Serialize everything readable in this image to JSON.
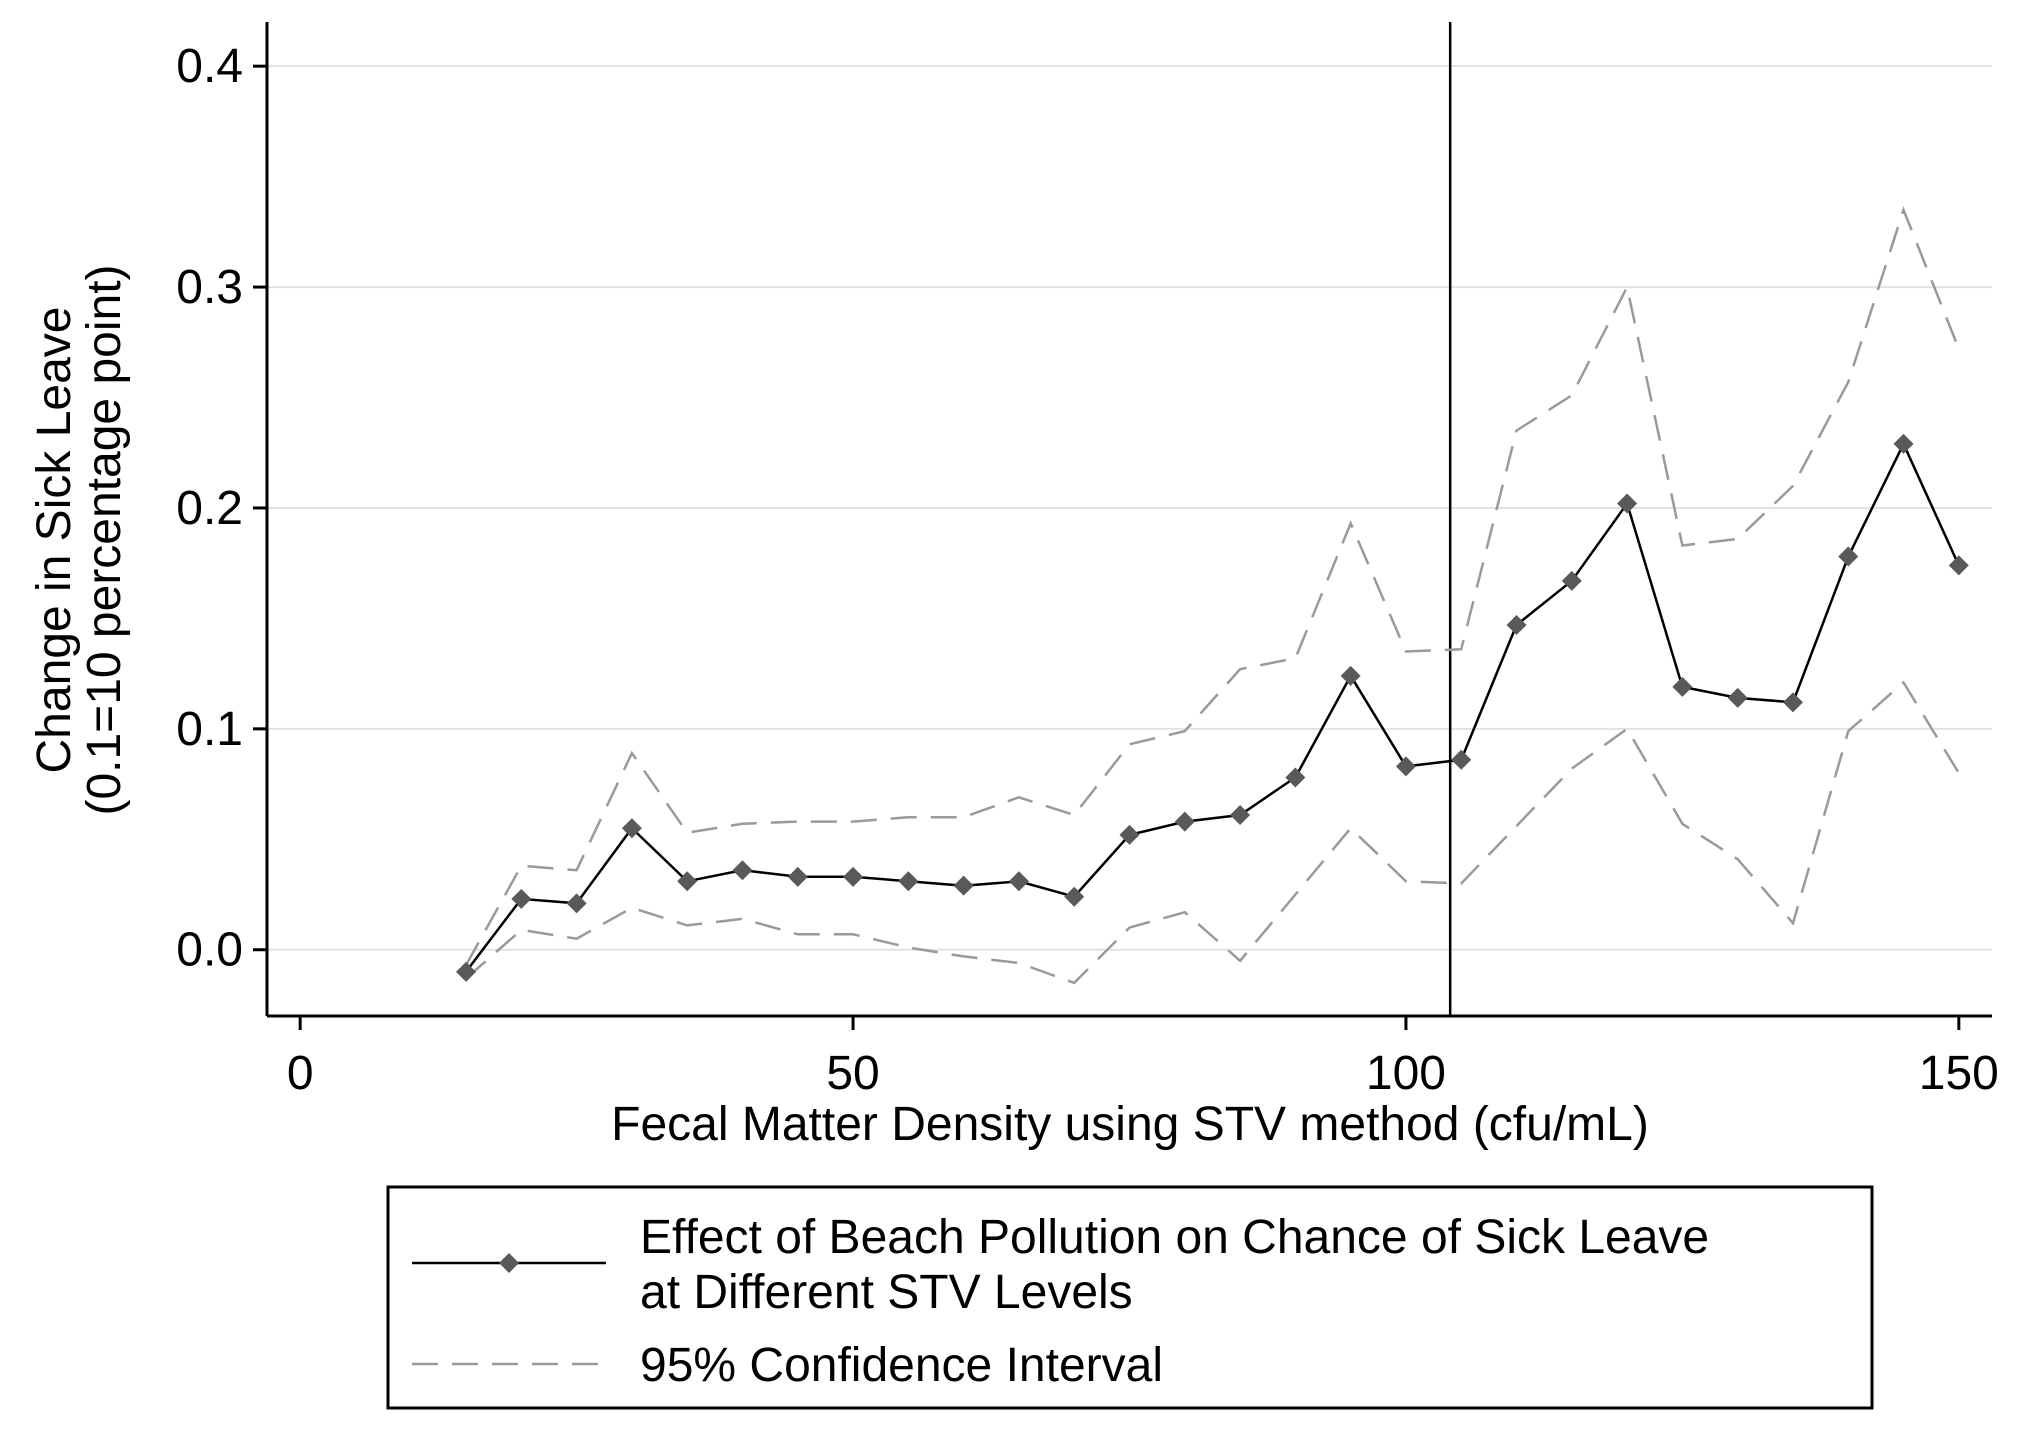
{
  "chart_data": {
    "type": "line",
    "xlabel": "Fecal Matter Density using STV method (cfu/mL)",
    "ylabel_line1": "Change in Sick Leave",
    "ylabel_line2": "(0.1=10 percentage point)",
    "xlim": [
      -3,
      153
    ],
    "ylim": [
      -0.03,
      0.42
    ],
    "x_ticks": [
      0,
      50,
      100,
      150
    ],
    "y_ticks": [
      0.0,
      0.1,
      0.2,
      0.3,
      0.4
    ],
    "y_tick_labels": [
      "0.0",
      "0.1",
      "0.2",
      "0.3",
      "0.4"
    ],
    "grid": true,
    "threshold_x": 104,
    "colors": {
      "estimate": "#000000",
      "marker": "#595959",
      "ci": "#9a9a9a",
      "grid": "#e2e2e2"
    },
    "x": [
      15,
      20,
      25,
      30,
      35,
      40,
      45,
      50,
      55,
      60,
      65,
      70,
      75,
      80,
      85,
      90,
      95,
      100,
      105,
      110,
      115,
      120,
      125,
      130,
      135,
      140,
      145,
      150
    ],
    "series": [
      {
        "name": "Effect of Beach Pollution on Chance of Sick Leave at Different STV Levels",
        "style": "solid-diamond",
        "values": [
          -0.01,
          0.023,
          0.021,
          0.055,
          0.031,
          0.036,
          0.033,
          0.033,
          0.031,
          0.029,
          0.031,
          0.024,
          0.052,
          0.058,
          0.061,
          0.078,
          0.124,
          0.083,
          0.086,
          0.147,
          0.167,
          0.202,
          0.119,
          0.114,
          0.112,
          0.178,
          0.229,
          0.174
        ]
      },
      {
        "name": "95% Confidence Interval (upper)",
        "style": "dashed",
        "values": [
          -0.007,
          0.038,
          0.036,
          0.089,
          0.053,
          0.057,
          0.058,
          0.058,
          0.06,
          0.06,
          0.069,
          0.061,
          0.093,
          0.099,
          0.127,
          0.132,
          0.193,
          0.135,
          0.136,
          0.235,
          0.251,
          0.3,
          0.183,
          0.186,
          0.21,
          0.257,
          0.335,
          0.272
        ]
      },
      {
        "name": "95% Confidence Interval (lower)",
        "style": "dashed",
        "values": [
          -0.013,
          0.009,
          0.005,
          0.019,
          0.011,
          0.014,
          0.007,
          0.007,
          0.001,
          -0.003,
          -0.006,
          -0.015,
          0.01,
          0.017,
          -0.005,
          0.025,
          0.055,
          0.031,
          0.03,
          0.056,
          0.082,
          0.1,
          0.057,
          0.041,
          0.012,
          0.099,
          0.121,
          0.08
        ]
      }
    ],
    "legend": {
      "position": "bottom",
      "entries": [
        {
          "line1": "Effect of Beach Pollution on Chance of Sick Leave",
          "line2": "at Different STV Levels"
        },
        {
          "line1": "95% Confidence Interval"
        }
      ]
    }
  }
}
